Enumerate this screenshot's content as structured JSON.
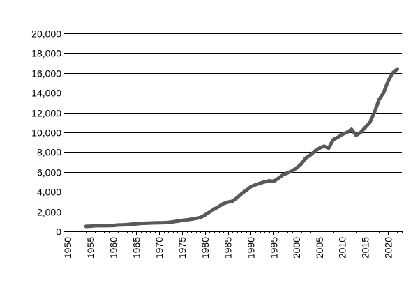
{
  "chart_data": {
    "type": "line",
    "title": "",
    "xlabel": "",
    "ylabel": "",
    "xlim": [
      1950,
      2023
    ],
    "ylim": [
      0,
      20000
    ],
    "x_ticks": [
      1950,
      1955,
      1960,
      1965,
      1970,
      1975,
      1980,
      1985,
      1990,
      1995,
      2000,
      2005,
      2010,
      2015,
      2020
    ],
    "x_tick_labels": [
      "1950",
      "1955",
      "1960",
      "1965",
      "1970",
      "1975",
      "1980",
      "1985",
      "1990",
      "1995",
      "2000",
      "2005",
      "2010",
      "2015",
      "2020"
    ],
    "y_ticks": [
      0,
      2000,
      4000,
      6000,
      8000,
      10000,
      12000,
      14000,
      16000,
      18000,
      20000
    ],
    "y_tick_labels": [
      "0",
      "2,000",
      "4,000",
      "6,000",
      "8,000",
      "10,000",
      "12,000",
      "14,000",
      "16,000",
      "18,000",
      "20,000"
    ],
    "grid": "horizontal",
    "legend": "none",
    "colors": {
      "line": "#595959",
      "grid": "#000000"
    },
    "series": [
      {
        "x": [
          1954,
          1955,
          1956,
          1957,
          1958,
          1959,
          1960,
          1961,
          1962,
          1963,
          1964,
          1965,
          1966,
          1967,
          1968,
          1969,
          1970,
          1971,
          1972,
          1973,
          1974,
          1975,
          1976,
          1977,
          1978,
          1979,
          1980,
          1981,
          1982,
          1983,
          1984,
          1985,
          1986,
          1987,
          1988,
          1989,
          1990,
          1991,
          1992,
          1993,
          1994,
          1995,
          1996,
          1997,
          1998,
          1999,
          2000,
          2001,
          2002,
          2003,
          2004,
          2005,
          2006,
          2007,
          2008,
          2009,
          2010,
          2011,
          2012,
          2013,
          2014,
          2015,
          2016,
          2017,
          2018,
          2019,
          2020,
          2021,
          2022
        ],
        "values": [
          500,
          520,
          560,
          570,
          570,
          580,
          590,
          640,
          650,
          680,
          720,
          760,
          800,
          820,
          840,
          850,
          860,
          870,
          900,
          960,
          1030,
          1100,
          1150,
          1220,
          1300,
          1400,
          1650,
          1950,
          2250,
          2500,
          2800,
          2950,
          3050,
          3400,
          3800,
          4150,
          4500,
          4700,
          4850,
          5000,
          5100,
          5050,
          5350,
          5700,
          5900,
          6100,
          6400,
          6800,
          7400,
          7700,
          8100,
          8400,
          8600,
          8400,
          9250,
          9500,
          9800,
          10000,
          10300,
          9700,
          10000,
          10500,
          11000,
          12000,
          13300,
          14000,
          15200,
          16000,
          16400
        ]
      }
    ]
  }
}
